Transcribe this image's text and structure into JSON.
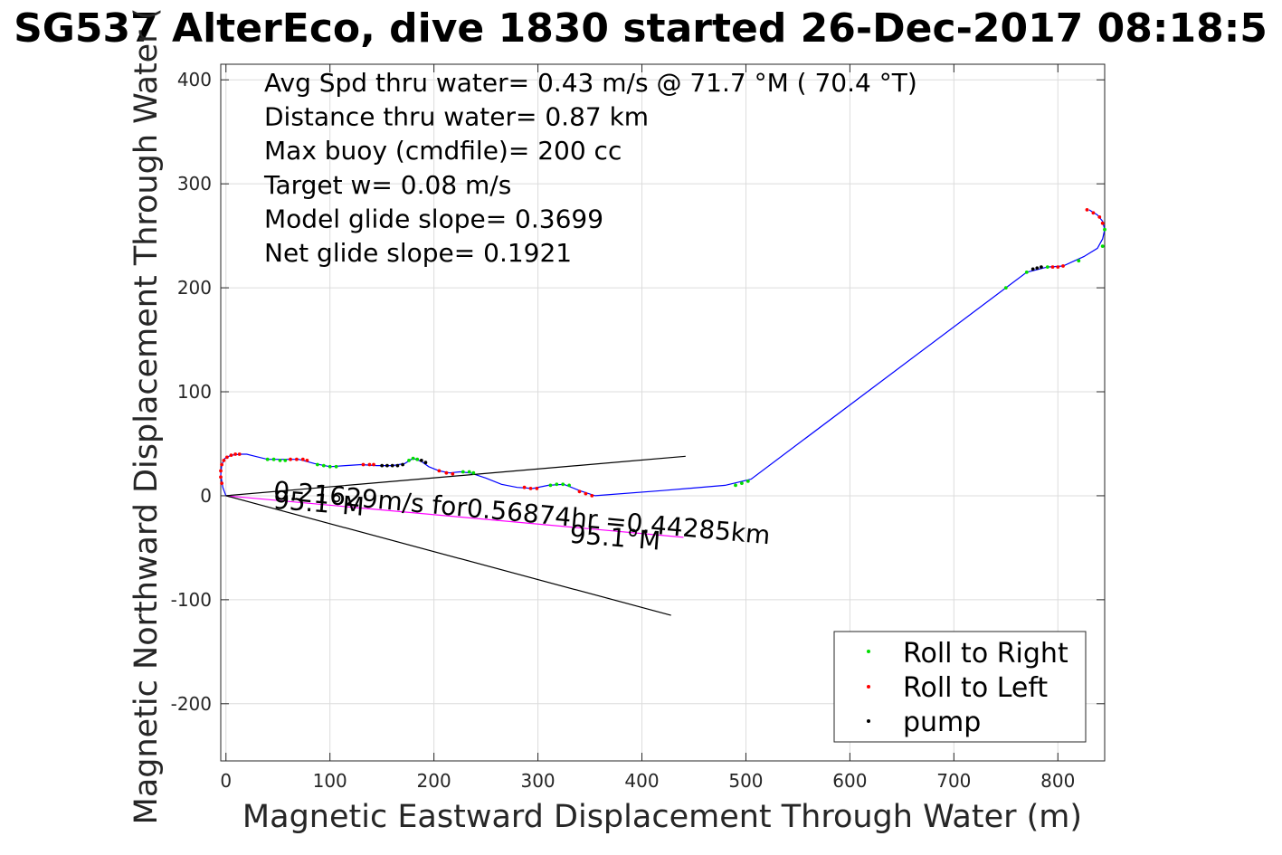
{
  "chart_data": {
    "type": "line",
    "title": "SG537 AlterEco, dive 1830 started 26-Dec-2017 08:18:5",
    "xlabel": "Magnetic Eastward Displacement Through Water (m)",
    "ylabel": "Magnetic Northward Displacement Through Water (",
    "xlim": [
      -5,
      845
    ],
    "ylim": [
      -255,
      415
    ],
    "xticks": [
      0,
      100,
      200,
      300,
      400,
      500,
      600,
      700,
      800
    ],
    "yticks": [
      -200,
      -100,
      0,
      100,
      200,
      300,
      400
    ],
    "xtick_labels": [
      "0",
      "100",
      "200",
      "300",
      "400",
      "500",
      "600",
      "700",
      "800"
    ],
    "ytick_labels": [
      "-200",
      "-100",
      "0",
      "100",
      "200",
      "300",
      "400"
    ],
    "grid": true,
    "legend_position": "bottom-right",
    "stats_lines": [
      "Avg Spd thru water=  0.43 m/s @  71.7 °M ( 70.4 °T)",
      "Distance thru water=  0.87 km",
      "Max buoy (cmdfile)= 200 cc",
      "Target w= 0.08 m/s",
      "Model glide slope= 0.3699",
      "Net glide slope= 0.1921"
    ],
    "annotations": [
      {
        "text": "0.21629m/s for0.56874hr =0.44285km",
        "x": 45,
        "y": -3,
        "rotation": 5.2
      },
      {
        "text": "95.1°M",
        "x": 45,
        "y": -12,
        "rotation": 4.6
      },
      {
        "text": "95.1°M",
        "x": 330,
        "y": -45,
        "rotation": 4.6
      }
    ],
    "series": [
      {
        "name": "",
        "role": "track",
        "color": "#0000ff",
        "x": [
          0,
          -3,
          -5,
          -4,
          -1,
          5,
          14,
          20,
          28,
          40,
          55,
          70,
          85,
          100,
          115,
          130,
          145,
          160,
          172,
          180,
          188,
          195,
          205,
          215,
          225,
          235,
          250,
          265,
          280,
          295,
          310,
          325,
          340,
          355,
          420,
          480,
          505,
          750,
          770,
          790,
          805,
          825,
          838,
          843,
          845,
          843,
          838,
          830
        ],
        "y": [
          0,
          8,
          20,
          30,
          36,
          39,
          40,
          40,
          38,
          35,
          35,
          35,
          31,
          28,
          29,
          30,
          29,
          29,
          31,
          36,
          33,
          28,
          24,
          22,
          23,
          22,
          17,
          11,
          8,
          7,
          10,
          11,
          5,
          0,
          5,
          10,
          16,
          200,
          215,
          220,
          221,
          230,
          238,
          247,
          256,
          264,
          270,
          275
        ]
      },
      {
        "name": "",
        "role": "projected-track",
        "color": "#ff00ff",
        "x": [
          0,
          440
        ],
        "y": [
          0,
          -40
        ]
      },
      {
        "name": "",
        "role": "wedge-line",
        "color": "#000000",
        "x": [
          0,
          442
        ],
        "y": [
          0,
          38
        ]
      },
      {
        "name": "",
        "role": "wedge-line",
        "color": "#000000",
        "x": [
          0,
          428
        ],
        "y": [
          0,
          -115
        ]
      }
    ],
    "markers": {
      "roll_right": {
        "label": "Roll to Right",
        "color": "#00dd00",
        "x": [
          40,
          46,
          52,
          57,
          88,
          94,
          100,
          106,
          176,
          180,
          184,
          228,
          234,
          238,
          312,
          318,
          324,
          330,
          490,
          496,
          502,
          750,
          770,
          790,
          820,
          843,
          845
        ],
        "y": [
          35,
          35,
          34,
          34,
          30,
          29,
          28,
          28,
          34,
          36,
          35,
          23,
          23,
          22,
          10,
          11,
          11,
          10,
          10,
          12,
          14,
          200,
          215,
          220,
          226,
          240,
          256
        ]
      },
      "roll_left": {
        "label": "Roll to Left",
        "color": "#ff0000",
        "x": [
          -4,
          -5,
          -5,
          -4,
          -2,
          1,
          5,
          9,
          13,
          62,
          68,
          74,
          78,
          132,
          138,
          142,
          205,
          212,
          218,
          287,
          293,
          299,
          340,
          346,
          352,
          795,
          800,
          805,
          828,
          834,
          840,
          843
        ],
        "y": [
          12,
          18,
          24,
          30,
          34,
          37,
          39,
          40,
          40,
          35,
          35,
          35,
          34,
          30,
          30,
          30,
          24,
          22,
          21,
          8,
          7,
          7,
          4,
          2,
          0,
          220,
          220,
          221,
          275,
          272,
          268,
          262
        ]
      },
      "pump": {
        "label": "pump",
        "color": "#000000",
        "x": [
          150,
          155,
          160,
          165,
          170,
          188,
          192,
          776,
          780,
          784
        ],
        "y": [
          29,
          29,
          29,
          29,
          30,
          34,
          32,
          218,
          219,
          220
        ]
      }
    }
  }
}
